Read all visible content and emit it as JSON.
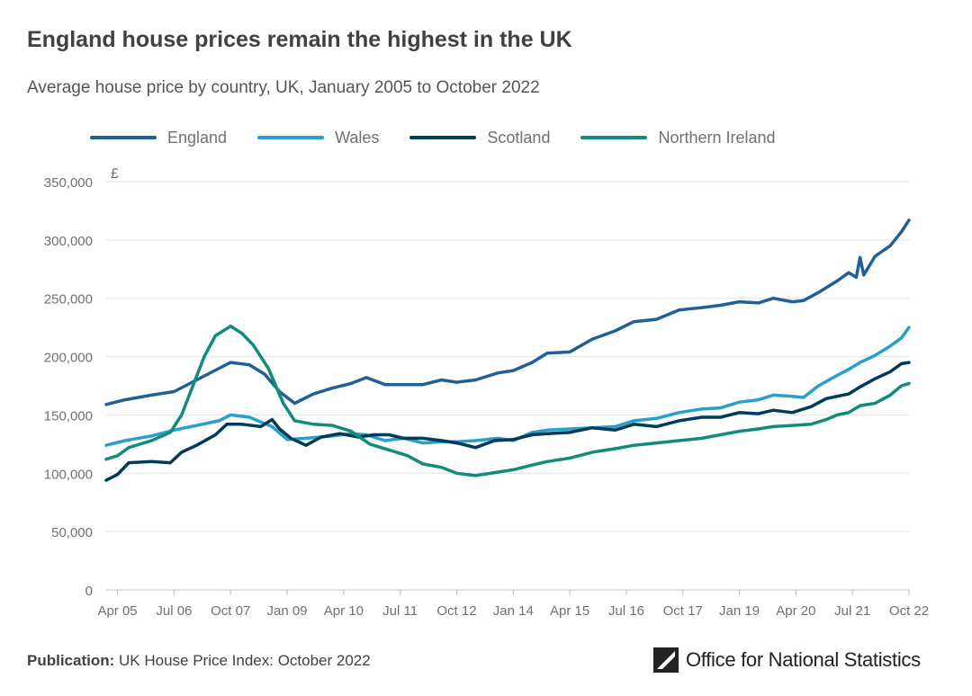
{
  "title": "England house prices remain the highest in the UK",
  "subtitle": "Average house price by country, UK, January 2005 to October 2022",
  "legend": [
    {
      "name": "England",
      "color": "#206095"
    },
    {
      "name": "Wales",
      "color": "#27a0cc"
    },
    {
      "name": "Scotland",
      "color": "#003c57"
    },
    {
      "name": "Northern Ireland",
      "color": "#118c7b"
    }
  ],
  "footer": {
    "label": "Publication:",
    "text": " UK House Price Index: October 2022",
    "logo_text": "Office for National Statistics",
    "logo_icon": "ons-logo-icon"
  },
  "chart_data": {
    "type": "line",
    "ylabel": "£",
    "ylim": [
      0,
      350000
    ],
    "yticks": [
      0,
      50000,
      100000,
      150000,
      200000,
      250000,
      300000,
      350000
    ],
    "ytick_labels": [
      "0",
      "50,000",
      "100,000",
      "150,000",
      "200,000",
      "250,000",
      "300,000",
      "350,000"
    ],
    "xlim": [
      "2005-01",
      "2022-10"
    ],
    "xticks": [
      "2005-04",
      "2006-07",
      "2007-10",
      "2009-01",
      "2010-04",
      "2011-07",
      "2012-10",
      "2014-01",
      "2015-04",
      "2016-07",
      "2017-10",
      "2019-01",
      "2020-04",
      "2021-07",
      "2022-10"
    ],
    "xtick_labels": [
      "Apr 05",
      "Jul 06",
      "Oct 07",
      "Jan 09",
      "Apr 10",
      "Jul 11",
      "Oct 12",
      "Jan 14",
      "Apr 15",
      "Jul 16",
      "Oct 17",
      "Jan 19",
      "Apr 20",
      "Jul 21",
      "Oct 22"
    ],
    "grid": true,
    "legend_position": "top",
    "series": [
      {
        "name": "England",
        "color": "#206095",
        "points": [
          [
            "2005-01",
            159000
          ],
          [
            "2005-06",
            163000
          ],
          [
            "2006-01",
            167000
          ],
          [
            "2006-07",
            170000
          ],
          [
            "2007-01",
            180000
          ],
          [
            "2007-07",
            190000
          ],
          [
            "2007-10",
            195000
          ],
          [
            "2008-03",
            193000
          ],
          [
            "2008-07",
            185000
          ],
          [
            "2008-11",
            170000
          ],
          [
            "2009-03",
            160000
          ],
          [
            "2009-08",
            168000
          ],
          [
            "2010-01",
            173000
          ],
          [
            "2010-06",
            177000
          ],
          [
            "2010-10",
            182000
          ],
          [
            "2011-03",
            176000
          ],
          [
            "2011-08",
            176000
          ],
          [
            "2012-01",
            176000
          ],
          [
            "2012-06",
            180000
          ],
          [
            "2012-10",
            178000
          ],
          [
            "2013-03",
            180000
          ],
          [
            "2013-09",
            186000
          ],
          [
            "2014-01",
            188000
          ],
          [
            "2014-06",
            195000
          ],
          [
            "2014-10",
            203000
          ],
          [
            "2015-04",
            204000
          ],
          [
            "2015-10",
            215000
          ],
          [
            "2016-04",
            222000
          ],
          [
            "2016-09",
            230000
          ],
          [
            "2017-03",
            232000
          ],
          [
            "2017-09",
            240000
          ],
          [
            "2018-03",
            242000
          ],
          [
            "2018-08",
            244000
          ],
          [
            "2019-01",
            247000
          ],
          [
            "2019-06",
            246000
          ],
          [
            "2019-10",
            250000
          ],
          [
            "2020-03",
            247000
          ],
          [
            "2020-06",
            248000
          ],
          [
            "2020-10",
            255000
          ],
          [
            "2021-03",
            265000
          ],
          [
            "2021-06",
            272000
          ],
          [
            "2021-08",
            268000
          ],
          [
            "2021-09",
            285000
          ],
          [
            "2021-10",
            270000
          ],
          [
            "2022-01",
            286000
          ],
          [
            "2022-05",
            295000
          ],
          [
            "2022-08",
            307000
          ],
          [
            "2022-10",
            317000
          ]
        ]
      },
      {
        "name": "Wales",
        "color": "#27a0cc",
        "points": [
          [
            "2005-01",
            124000
          ],
          [
            "2005-06",
            128000
          ],
          [
            "2006-01",
            132000
          ],
          [
            "2006-07",
            137000
          ],
          [
            "2007-01",
            141000
          ],
          [
            "2007-07",
            145000
          ],
          [
            "2007-10",
            150000
          ],
          [
            "2008-03",
            148000
          ],
          [
            "2008-09",
            140000
          ],
          [
            "2009-01",
            129000
          ],
          [
            "2009-06",
            130000
          ],
          [
            "2010-01",
            132000
          ],
          [
            "2010-06",
            134000
          ],
          [
            "2010-10",
            133000
          ],
          [
            "2011-03",
            128000
          ],
          [
            "2011-08",
            130000
          ],
          [
            "2012-01",
            126000
          ],
          [
            "2012-06",
            127000
          ],
          [
            "2012-10",
            127000
          ],
          [
            "2013-03",
            128000
          ],
          [
            "2013-09",
            130000
          ],
          [
            "2014-01",
            128000
          ],
          [
            "2014-06",
            135000
          ],
          [
            "2014-10",
            137000
          ],
          [
            "2015-04",
            138000
          ],
          [
            "2015-10",
            139000
          ],
          [
            "2016-04",
            140000
          ],
          [
            "2016-09",
            145000
          ],
          [
            "2017-03",
            147000
          ],
          [
            "2017-09",
            152000
          ],
          [
            "2018-03",
            155000
          ],
          [
            "2018-08",
            156000
          ],
          [
            "2019-01",
            161000
          ],
          [
            "2019-06",
            163000
          ],
          [
            "2019-10",
            167000
          ],
          [
            "2020-03",
            166000
          ],
          [
            "2020-06",
            165000
          ],
          [
            "2020-10",
            175000
          ],
          [
            "2021-03",
            184000
          ],
          [
            "2021-06",
            189000
          ],
          [
            "2021-09",
            195000
          ],
          [
            "2022-01",
            201000
          ],
          [
            "2022-05",
            209000
          ],
          [
            "2022-08",
            216000
          ],
          [
            "2022-10",
            225000
          ]
        ]
      },
      {
        "name": "Scotland",
        "color": "#003c57",
        "points": [
          [
            "2005-01",
            94000
          ],
          [
            "2005-04",
            99000
          ],
          [
            "2005-07",
            109000
          ],
          [
            "2006-01",
            110000
          ],
          [
            "2006-06",
            109000
          ],
          [
            "2006-09",
            118000
          ],
          [
            "2007-01",
            124000
          ],
          [
            "2007-06",
            133000
          ],
          [
            "2007-09",
            142000
          ],
          [
            "2008-01",
            142000
          ],
          [
            "2008-06",
            140000
          ],
          [
            "2008-09",
            146000
          ],
          [
            "2008-11",
            138000
          ],
          [
            "2009-02",
            130000
          ],
          [
            "2009-06",
            124000
          ],
          [
            "2009-10",
            131000
          ],
          [
            "2010-03",
            134000
          ],
          [
            "2010-08",
            131000
          ],
          [
            "2010-12",
            133000
          ],
          [
            "2011-04",
            133000
          ],
          [
            "2011-08",
            130000
          ],
          [
            "2012-01",
            130000
          ],
          [
            "2012-06",
            128000
          ],
          [
            "2012-10",
            126000
          ],
          [
            "2013-03",
            122000
          ],
          [
            "2013-08",
            128000
          ],
          [
            "2014-01",
            129000
          ],
          [
            "2014-06",
            133000
          ],
          [
            "2014-10",
            134000
          ],
          [
            "2015-04",
            135000
          ],
          [
            "2015-10",
            139000
          ],
          [
            "2016-04",
            137000
          ],
          [
            "2016-09",
            142000
          ],
          [
            "2017-03",
            140000
          ],
          [
            "2017-09",
            145000
          ],
          [
            "2018-03",
            148000
          ],
          [
            "2018-08",
            148000
          ],
          [
            "2019-01",
            152000
          ],
          [
            "2019-06",
            151000
          ],
          [
            "2019-10",
            154000
          ],
          [
            "2020-03",
            152000
          ],
          [
            "2020-08",
            157000
          ],
          [
            "2020-12",
            164000
          ],
          [
            "2021-03",
            166000
          ],
          [
            "2021-06",
            168000
          ],
          [
            "2021-09",
            174000
          ],
          [
            "2022-01",
            181000
          ],
          [
            "2022-05",
            187000
          ],
          [
            "2022-08",
            194000
          ],
          [
            "2022-10",
            195000
          ]
        ]
      },
      {
        "name": "Northern Ireland",
        "color": "#118c7b",
        "points": [
          [
            "2005-01",
            112000
          ],
          [
            "2005-04",
            115000
          ],
          [
            "2005-07",
            122000
          ],
          [
            "2006-01",
            128000
          ],
          [
            "2006-06",
            135000
          ],
          [
            "2006-09",
            150000
          ],
          [
            "2006-12",
            175000
          ],
          [
            "2007-03",
            200000
          ],
          [
            "2007-06",
            218000
          ],
          [
            "2007-10",
            226000
          ],
          [
            "2008-01",
            220000
          ],
          [
            "2008-04",
            210000
          ],
          [
            "2008-08",
            190000
          ],
          [
            "2008-12",
            160000
          ],
          [
            "2009-03",
            145000
          ],
          [
            "2009-08",
            142000
          ],
          [
            "2010-01",
            141000
          ],
          [
            "2010-06",
            136000
          ],
          [
            "2010-11",
            125000
          ],
          [
            "2011-04",
            120000
          ],
          [
            "2011-09",
            115000
          ],
          [
            "2012-01",
            108000
          ],
          [
            "2012-06",
            105000
          ],
          [
            "2012-10",
            100000
          ],
          [
            "2013-03",
            98000
          ],
          [
            "2013-09",
            101000
          ],
          [
            "2014-01",
            103000
          ],
          [
            "2014-06",
            107000
          ],
          [
            "2014-10",
            110000
          ],
          [
            "2015-04",
            113000
          ],
          [
            "2015-10",
            118000
          ],
          [
            "2016-04",
            121000
          ],
          [
            "2016-09",
            124000
          ],
          [
            "2017-03",
            126000
          ],
          [
            "2017-09",
            128000
          ],
          [
            "2018-03",
            130000
          ],
          [
            "2018-08",
            133000
          ],
          [
            "2019-01",
            136000
          ],
          [
            "2019-06",
            138000
          ],
          [
            "2019-10",
            140000
          ],
          [
            "2020-03",
            141000
          ],
          [
            "2020-08",
            142000
          ],
          [
            "2020-12",
            146000
          ],
          [
            "2021-03",
            150000
          ],
          [
            "2021-06",
            152000
          ],
          [
            "2021-09",
            158000
          ],
          [
            "2022-01",
            160000
          ],
          [
            "2022-05",
            167000
          ],
          [
            "2022-08",
            175000
          ],
          [
            "2022-10",
            177000
          ]
        ]
      }
    ]
  }
}
